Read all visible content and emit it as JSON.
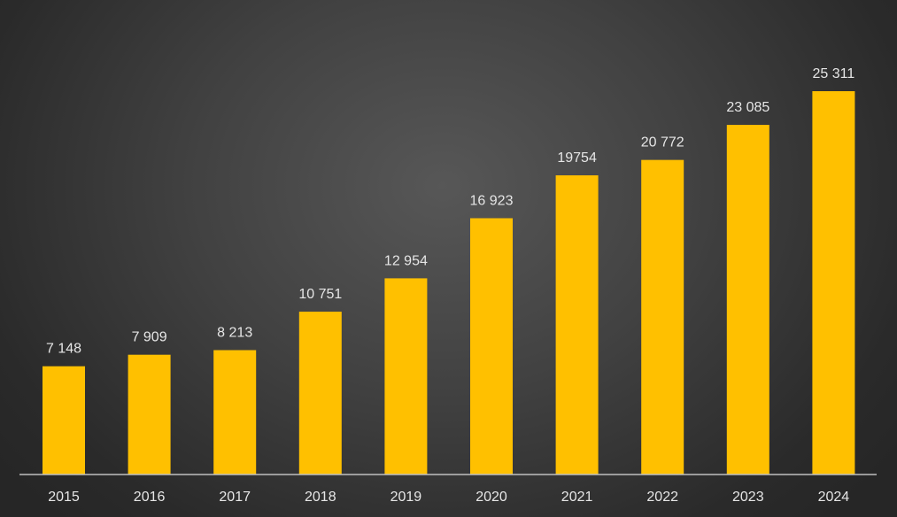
{
  "chart_data": {
    "type": "bar",
    "categories": [
      "2015",
      "2016",
      "2017",
      "2018",
      "2019",
      "2020",
      "2021",
      "2022",
      "2023",
      "2024"
    ],
    "values": [
      7148,
      7909,
      8213,
      10751,
      12954,
      16923,
      19754,
      20772,
      23085,
      25311
    ],
    "data_labels": [
      "7 148",
      "7 909",
      "8 213",
      "10 751",
      "12 954",
      "16 923",
      "19754",
      "20 772",
      "23 085",
      "25 311"
    ],
    "title": "",
    "xlabel": "",
    "ylabel": "",
    "ylim": [
      0,
      26500
    ],
    "grid": false,
    "legend": "none",
    "colors": {
      "bar": "#FFC000",
      "axis": "#bfbfbf",
      "text": "#e6e6e6"
    }
  }
}
